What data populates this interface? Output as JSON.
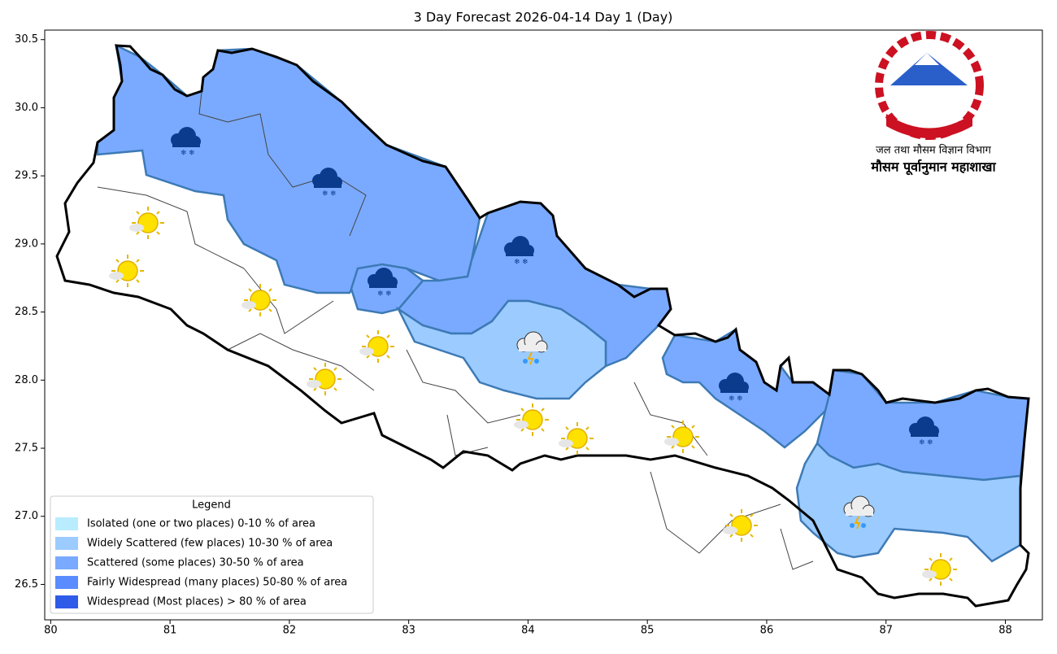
{
  "map": {
    "title": "3 Day Forecast 2026-04-14 Day 1 (Day)",
    "xlim": [
      79.95,
      88.31
    ],
    "ylim": [
      26.24,
      30.57
    ],
    "xticks": [
      80,
      81,
      82,
      83,
      84,
      85,
      86,
      87,
      88
    ],
    "yticks": [
      26.5,
      {
        "value": 27,
        "label": "27.0"
      },
      27.5,
      {
        "value": 28,
        "label": "28.0"
      },
      28.5,
      {
        "value": 29,
        "label": "29.0"
      },
      29.5,
      {
        "value": 30,
        "label": "30.0"
      },
      30.5
    ],
    "legend": {
      "title": "Legend",
      "items": [
        {
          "label": "Isolated (one or two places)  0-10 % of area",
          "color": "#b9ecff"
        },
        {
          "label": "Widely Scattered (few places)  10-30 % of area",
          "color": "#9ccbff"
        },
        {
          "label": "Scattered (some places)  30-50 % of area",
          "color": "#7aaaff"
        },
        {
          "label": "Fairly Widespread (many places)  50-80 % of area",
          "color": "#5a8cff"
        },
        {
          "label": "Widespread (Most places) > 80 % of area",
          "color": "#2e5be8"
        }
      ]
    },
    "logo": {
      "department": "जल तथा मौसम विज्ञान विभाग",
      "division": "मौसम पूर्वानुमान महाशाखा"
    }
  }
}
